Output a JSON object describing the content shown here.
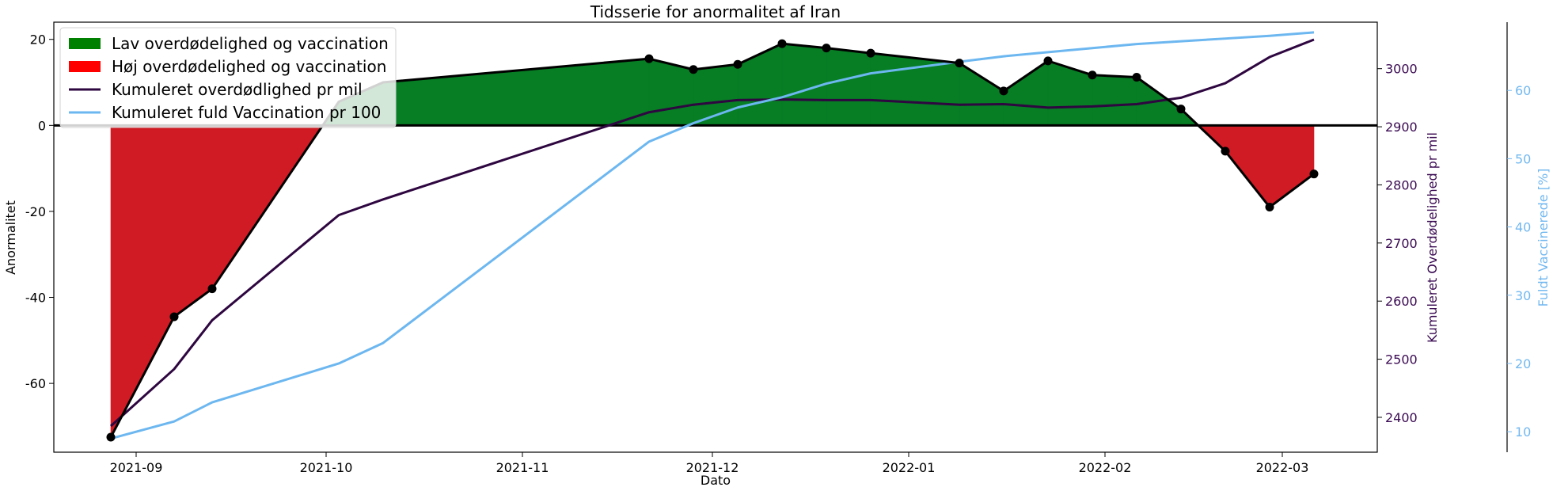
{
  "chart_data": {
    "type": "area",
    "title": "Tidsserie for anormalitet af Iran",
    "xlabel": "Dato",
    "ylabel_left": "Anormalitet",
    "ylabel_right1": "Kumuleret Overdødelighed pr mil",
    "ylabel_right2": "Fuldt Vaccinerede [%]",
    "x_ticks": [
      "2021-09",
      "2021-10",
      "2021-11",
      "2021-12",
      "2022-01",
      "2022-02",
      "2022-03"
    ],
    "y_left_ticks": [
      20,
      0,
      -20,
      -40,
      -60
    ],
    "y_right1_ticks": [
      3000,
      2900,
      2800,
      2700,
      2600,
      2500,
      2400
    ],
    "y_right2_ticks": [
      60,
      50,
      40,
      30,
      20,
      10
    ],
    "y_left_lim": [
      -76,
      24
    ],
    "y_right1_lim": [
      2340,
      3080
    ],
    "y_right2_lim": [
      7,
      70
    ],
    "legend_position": "top-left",
    "colors": {
      "positive_fill": "#077d24",
      "negative_fill": "#d01b25",
      "legend_positive": "#008000",
      "legend_negative": "#ff0000",
      "anomaly_line": "#000000",
      "mortality": "#2e0640",
      "vaccination": "#6db7f0",
      "right1_axis": "#3a0a52",
      "right2_axis": "#72b8f0"
    },
    "legend": [
      {
        "label": "Lav overdødelighed og vaccination",
        "kind": "patch",
        "color": "#008000"
      },
      {
        "label": "Høj overdødelighed og vaccination",
        "kind": "patch",
        "color": "#ff0000"
      },
      {
        "label": "Kumuleret overdødlighed pr mil",
        "kind": "line",
        "color": "#2e0640"
      },
      {
        "label": "Kumuleret fuld Vaccination pr 100",
        "kind": "line",
        "color": "#6db7f0"
      }
    ],
    "series": [
      {
        "key": "anomaly",
        "axis": "left",
        "x": [
          "2021-08-28",
          "2021-09-07",
          "2021-09-13",
          "2021-10-03",
          "2021-10-10",
          "2021-11-21",
          "2021-11-28",
          "2021-12-05",
          "2021-12-12",
          "2021-12-19",
          "2021-12-26",
          "2022-01-09",
          "2022-01-16",
          "2022-01-23",
          "2022-01-30",
          "2022-02-06",
          "2022-02-13",
          "2022-02-20",
          "2022-02-27",
          "2022-03-06"
        ],
        "values": [
          -72.5,
          -44.5,
          -38,
          5.5,
          10,
          15.5,
          13,
          14.2,
          19,
          18,
          16.8,
          14.5,
          8,
          15,
          11.7,
          11.2,
          3.8,
          -6,
          -19,
          -11.3
        ],
        "markers": [
          true,
          true,
          true,
          false,
          false,
          true,
          true,
          true,
          true,
          true,
          true,
          true,
          true,
          true,
          true,
          true,
          true,
          true,
          true,
          true
        ]
      },
      {
        "key": "mortality",
        "axis": "right1",
        "x": [
          "2021-08-28",
          "2021-09-07",
          "2021-09-13",
          "2021-10-03",
          "2021-10-10",
          "2021-11-21",
          "2021-11-28",
          "2021-12-05",
          "2021-12-12",
          "2021-12-19",
          "2021-12-26",
          "2022-01-09",
          "2022-01-16",
          "2022-01-23",
          "2022-01-30",
          "2022-02-06",
          "2022-02-13",
          "2022-02-20",
          "2022-02-27",
          "2022-03-06"
        ],
        "values": [
          2385,
          2483,
          2567,
          2748,
          2775,
          2925,
          2938,
          2946,
          2947,
          2946,
          2946,
          2938,
          2939,
          2933,
          2935,
          2939,
          2950,
          2975,
          3020,
          3050
        ]
      },
      {
        "key": "vaccination",
        "axis": "right2",
        "x": [
          "2021-08-28",
          "2021-09-07",
          "2021-09-13",
          "2021-10-03",
          "2021-10-10",
          "2021-11-21",
          "2021-11-28",
          "2021-12-05",
          "2021-12-12",
          "2021-12-19",
          "2021-12-26",
          "2022-01-09",
          "2022-01-16",
          "2022-01-23",
          "2022-01-30",
          "2022-02-06",
          "2022-02-13",
          "2022-02-20",
          "2022-02-27",
          "2022-03-06"
        ],
        "values": [
          9,
          11.5,
          14.3,
          20,
          23,
          52.5,
          55.2,
          57.5,
          59,
          61,
          62.5,
          64.2,
          65,
          65.6,
          66.2,
          66.8,
          67.2,
          67.6,
          68,
          68.5
        ]
      }
    ]
  }
}
